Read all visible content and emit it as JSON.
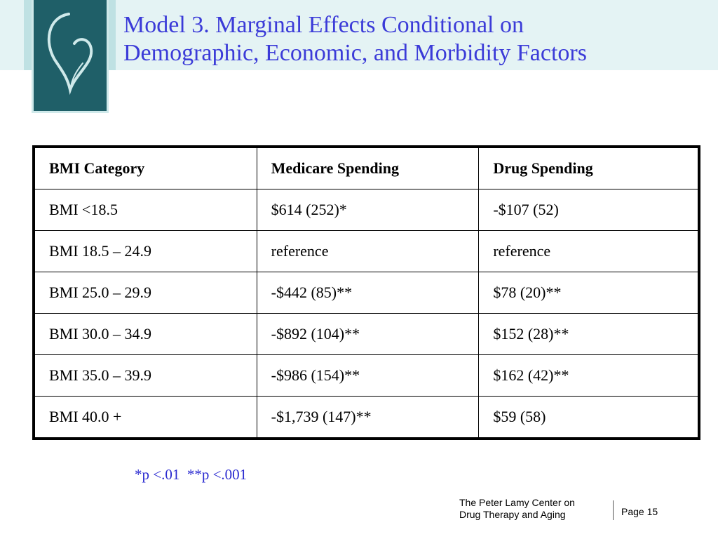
{
  "slide": {
    "title_line1": "Model 3. Marginal Effects Conditional on",
    "title_line2": "Demographic, Economic, and Morbidity Factors"
  },
  "table": {
    "headers": [
      "BMI Category",
      "Medicare Spending",
      "Drug Spending"
    ],
    "rows": [
      [
        "BMI <18.5",
        "$614 (252)*",
        "-$107 (52)"
      ],
      [
        "BMI 18.5 – 24.9",
        "reference",
        "reference"
      ],
      [
        "BMI 25.0 – 29.9",
        "-$442 (85)**",
        "$78 (20)**"
      ],
      [
        "BMI 30.0 – 34.9",
        "-$892 (104)**",
        "$152 (28)**"
      ],
      [
        "BMI 35.0 – 39.9",
        "-$986 (154)**",
        "$162 (42)**"
      ],
      [
        "BMI 40.0 +",
        "-$1,739 (147)**",
        "$59 (58)"
      ]
    ]
  },
  "footnote": "*p <.01  **p <.001",
  "footer": {
    "org_line1": "The Peter Lamy Center on",
    "org_line2": "Drug Therapy and Aging",
    "page": "Page 15"
  },
  "colors": {
    "title": "#3b3bd8",
    "footnote": "#2a2ad0",
    "logo_bg": "#1f5f68",
    "header_band": "#e4f3f4"
  },
  "icons": {
    "logo": "heart-logo-icon"
  }
}
